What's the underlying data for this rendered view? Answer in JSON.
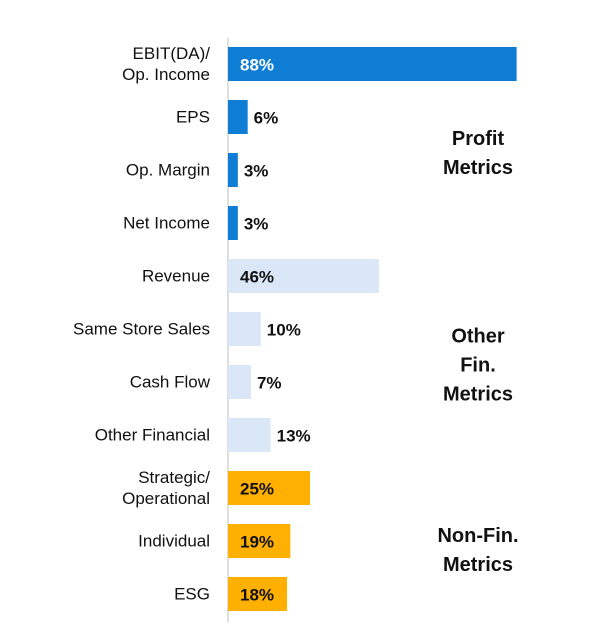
{
  "chart_data": {
    "type": "bar",
    "xlim": [
      0,
      100
    ],
    "groups": [
      {
        "name": "Profit\nMetrics",
        "color": "#0f7dd4",
        "categories": [
          "EBIT(DA)/\nOp. Income",
          "EPS",
          "Op. Margin",
          "Net Income"
        ],
        "values": [
          88,
          6,
          3,
          3
        ],
        "value_labels": [
          "88%",
          "6%",
          "3%",
          "3%"
        ]
      },
      {
        "name": "Other\nFin.\nMetrics",
        "color": "#dae7f6",
        "categories": [
          "Revenue",
          "Same Store Sales",
          "Cash Flow",
          "Other Financial"
        ],
        "values": [
          46,
          10,
          7,
          13
        ],
        "value_labels": [
          "46%",
          "10%",
          "7%",
          "13%"
        ]
      },
      {
        "name": "Non-Fin.\nMetrics",
        "color": "#ffb000",
        "categories": [
          "Strategic/\nOperational",
          "Individual",
          "ESG"
        ],
        "values": [
          25,
          19,
          18
        ],
        "value_labels": [
          "25%",
          "19%",
          "18%"
        ]
      }
    ]
  }
}
